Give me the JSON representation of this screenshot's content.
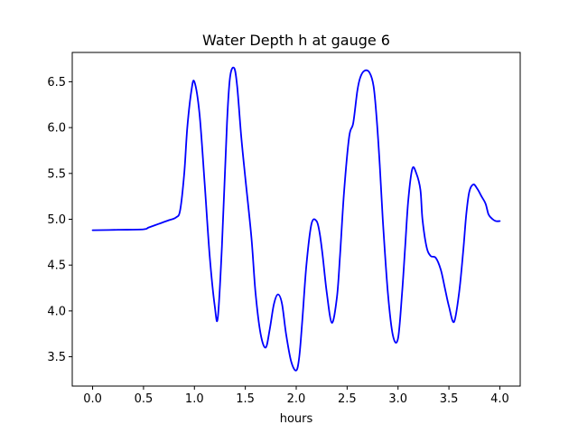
{
  "chart_data": {
    "type": "line",
    "title": "Water Depth h at gauge 6",
    "xlabel": "hours",
    "ylabel": "",
    "xlim": [
      -0.2,
      4.2
    ],
    "ylim": [
      3.18,
      6.82
    ],
    "xticks": [
      0.0,
      0.5,
      1.0,
      1.5,
      2.0,
      2.5,
      3.0,
      3.5,
      4.0
    ],
    "xtick_labels": [
      "0.0",
      "0.5",
      "1.0",
      "1.5",
      "2.0",
      "2.5",
      "3.0",
      "3.5",
      "4.0"
    ],
    "yticks": [
      3.5,
      4.0,
      4.5,
      5.0,
      5.5,
      6.0,
      6.5
    ],
    "ytick_labels": [
      "3.5",
      "4.0",
      "4.5",
      "5.0",
      "5.5",
      "6.0",
      "6.5"
    ],
    "grid": false,
    "series": [
      {
        "color": "#0000ff",
        "x": [
          0.0,
          0.25,
          0.5,
          0.55,
          0.65,
          0.75,
          0.82,
          0.86,
          0.9,
          0.93,
          0.97,
          1.0,
          1.05,
          1.1,
          1.15,
          1.2,
          1.23,
          1.27,
          1.32,
          1.35,
          1.39,
          1.42,
          1.46,
          1.5,
          1.56,
          1.6,
          1.65,
          1.7,
          1.74,
          1.78,
          1.82,
          1.86,
          1.9,
          1.95,
          2.0,
          2.03,
          2.06,
          2.1,
          2.15,
          2.2,
          2.23,
          2.26,
          2.3,
          2.35,
          2.4,
          2.43,
          2.47,
          2.52,
          2.56,
          2.6,
          2.63,
          2.67,
          2.72,
          2.76,
          2.79,
          2.82,
          2.85,
          2.9,
          2.95,
          3.0,
          3.04,
          3.07,
          3.1,
          3.14,
          3.18,
          3.22,
          3.24,
          3.28,
          3.32,
          3.37,
          3.42,
          3.46,
          3.5,
          3.55,
          3.6,
          3.64,
          3.67,
          3.7,
          3.74,
          3.78,
          3.82,
          3.86,
          3.89,
          3.93,
          3.96,
          4.0
        ],
        "values": [
          4.88,
          4.885,
          4.89,
          4.91,
          4.95,
          4.99,
          5.02,
          5.1,
          5.5,
          6.0,
          6.4,
          6.5,
          6.15,
          5.4,
          4.6,
          4.05,
          3.93,
          4.7,
          6.05,
          6.55,
          6.65,
          6.45,
          5.9,
          5.45,
          4.8,
          4.2,
          3.75,
          3.6,
          3.8,
          4.07,
          4.18,
          4.08,
          3.75,
          3.45,
          3.35,
          3.5,
          3.9,
          4.5,
          4.95,
          4.98,
          4.85,
          4.6,
          4.2,
          3.87,
          4.15,
          4.6,
          5.3,
          5.9,
          6.05,
          6.4,
          6.55,
          6.62,
          6.6,
          6.45,
          6.1,
          5.6,
          5.0,
          4.2,
          3.73,
          3.7,
          4.2,
          4.7,
          5.2,
          5.55,
          5.5,
          5.32,
          5.0,
          4.7,
          4.6,
          4.58,
          4.45,
          4.25,
          4.05,
          3.88,
          4.2,
          4.65,
          5.05,
          5.3,
          5.38,
          5.33,
          5.25,
          5.17,
          5.05,
          5.0,
          4.98,
          4.98
        ]
      }
    ]
  }
}
